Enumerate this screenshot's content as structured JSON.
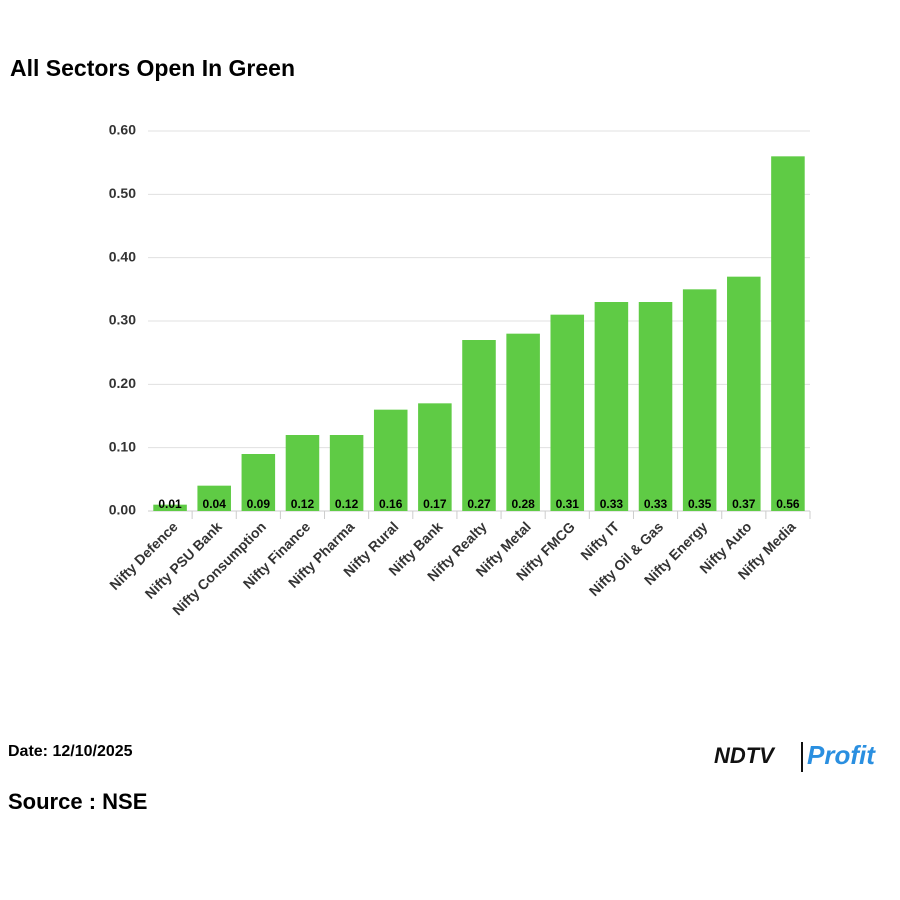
{
  "chart_data": {
    "type": "bar",
    "title": "All Sectors Open In Green",
    "categories": [
      "Nifty Defence",
      "Nifty PSU Bank",
      "Nifty Consumption",
      "Nifty Finance",
      "Nifty Pharma",
      "Nifty Rural",
      "Nifty Bank",
      "Nifty Realty",
      "Nifty Metal",
      "Nifty FMCG",
      "Nifty IT",
      "Nifty Oil & Gas",
      "Nifty Energy",
      "Nifty Auto",
      "Nifty Media"
    ],
    "values": [
      0.01,
      0.04,
      0.09,
      0.12,
      0.12,
      0.16,
      0.17,
      0.27,
      0.28,
      0.31,
      0.33,
      0.33,
      0.35,
      0.37,
      0.56
    ],
    "color": "#5fcb45",
    "ylim": [
      0,
      0.6
    ],
    "yticks": [
      {
        "value": 0,
        "label": "0.00"
      },
      {
        "value": 0.1,
        "label": "0.10"
      },
      {
        "value": 0.2,
        "label": "0.20"
      },
      {
        "value": 0.3,
        "label": "0.30"
      },
      {
        "value": 0.4,
        "label": "0.40"
      },
      {
        "value": 0.5,
        "label": "0.50"
      },
      {
        "value": 0.6,
        "label": "0.60"
      }
    ],
    "grid": true
  },
  "footer": {
    "date": "Date: 12/10/2025",
    "source": "Source : NSE",
    "logo": {
      "brand": "NDTV",
      "product": "Profit"
    }
  }
}
